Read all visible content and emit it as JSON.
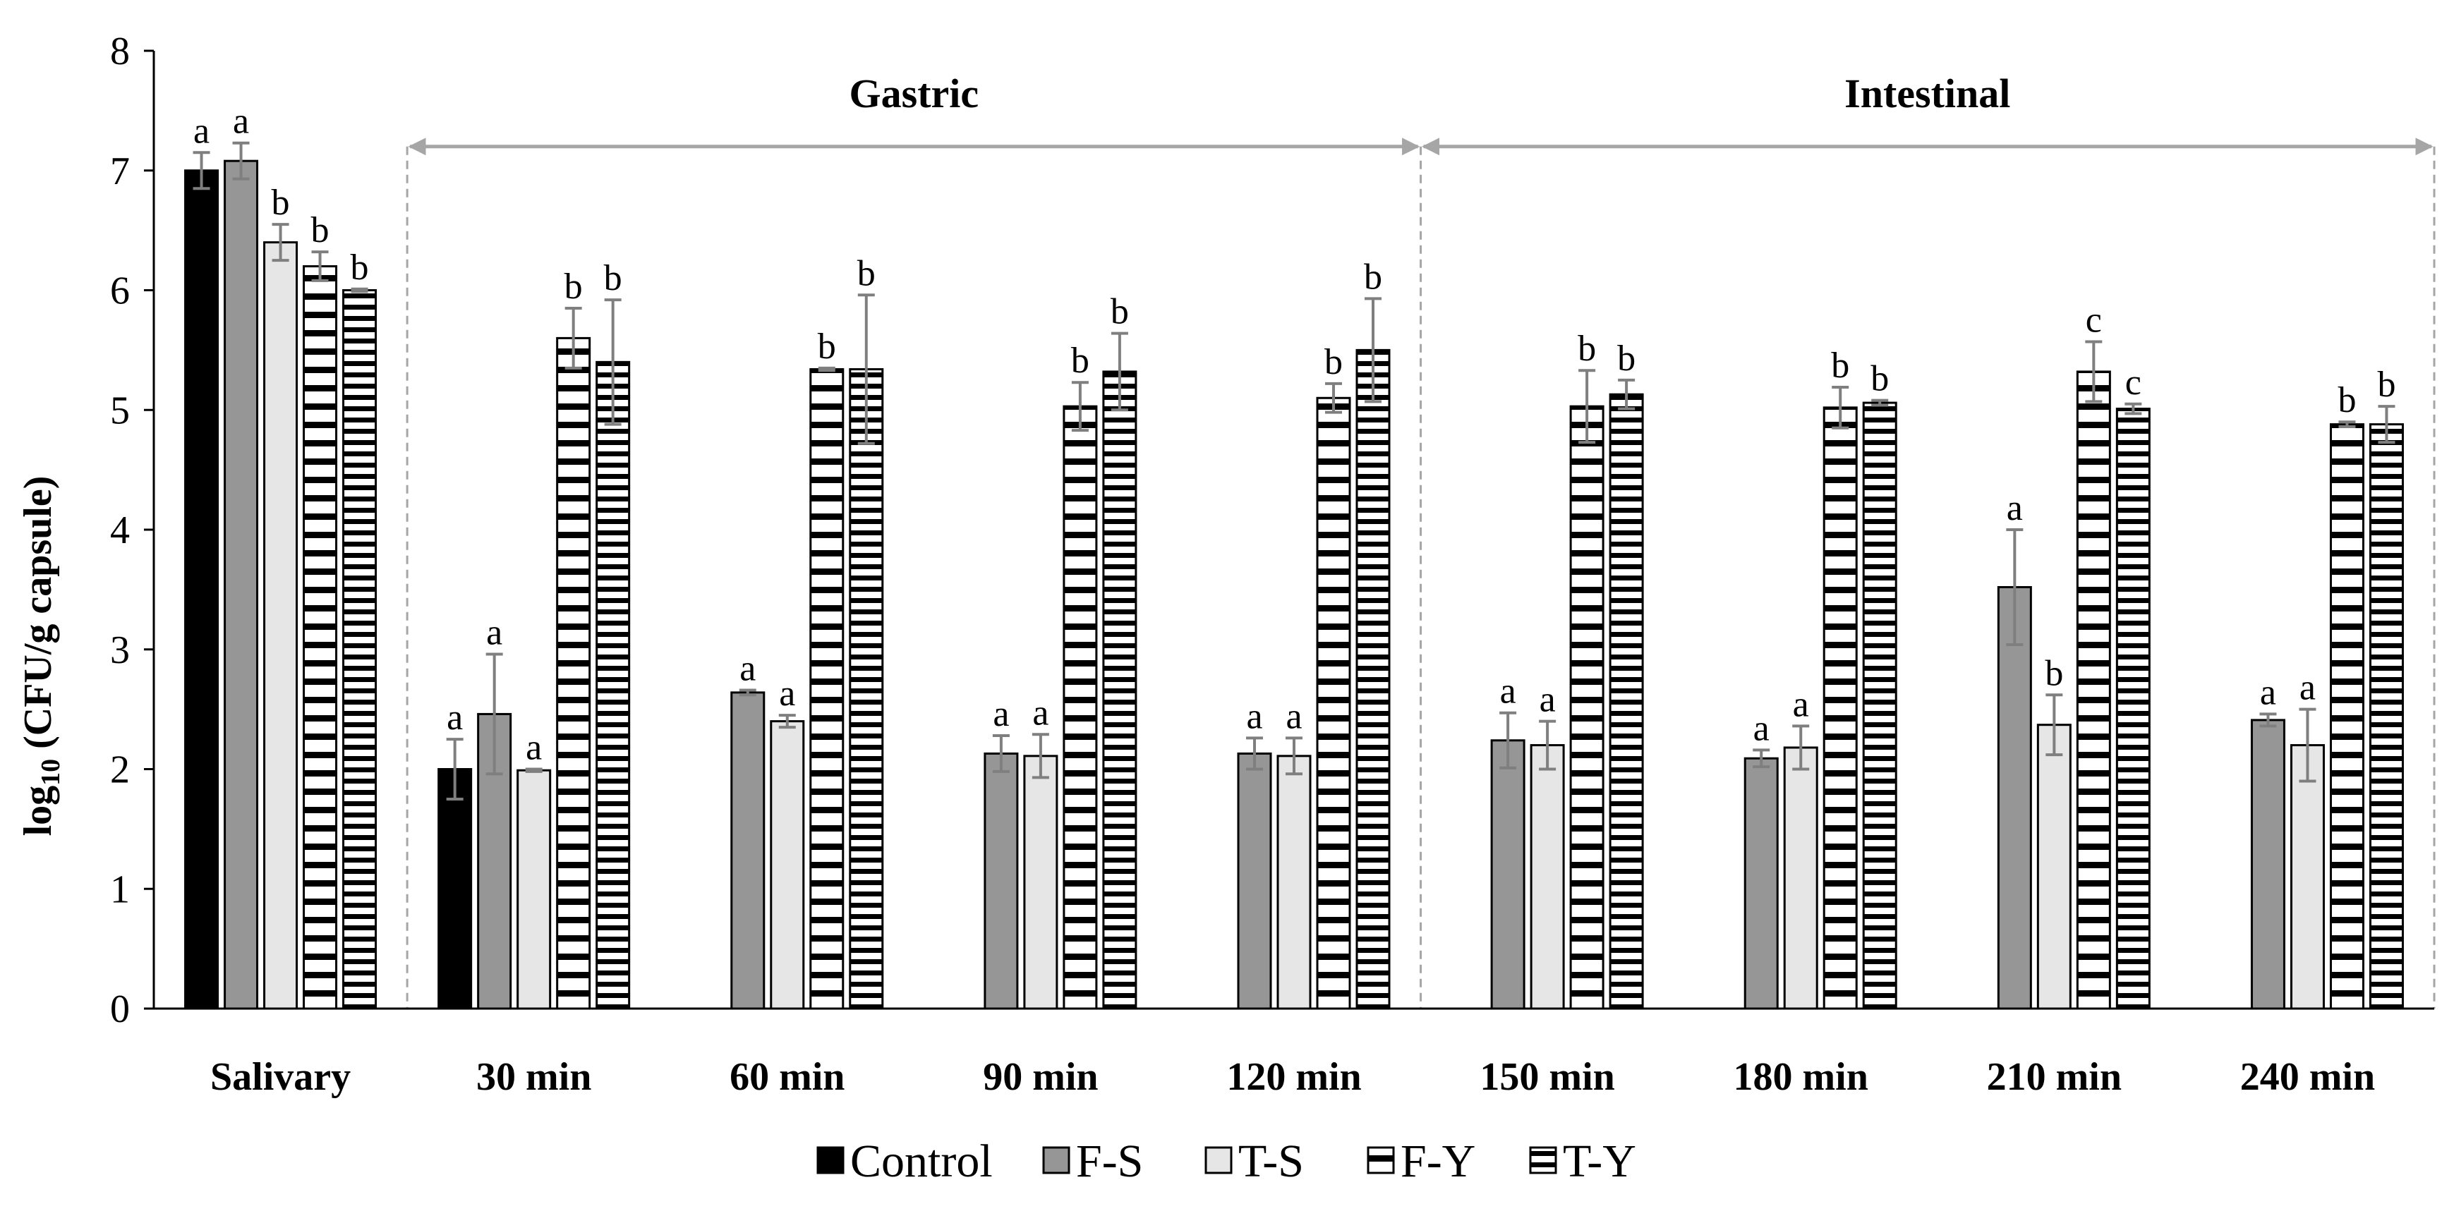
{
  "chart_data": {
    "type": "bar",
    "title": "",
    "xlabel": "",
    "ylabel": {
      "prefix": "log",
      "sub": "10",
      "suffix": " (CFU/g capsule)"
    },
    "ylim": [
      0,
      8
    ],
    "yticks": [
      "0",
      "1",
      "2",
      "3",
      "4",
      "5",
      "6",
      "7",
      "8"
    ],
    "categories": [
      "Salivary",
      "30 min",
      "60 min",
      "90 min",
      "120 min",
      "150 min",
      "180 min",
      "210 min",
      "240 min"
    ],
    "phases": [
      {
        "label": "Gastric",
        "from_category": 1,
        "to_category": 4
      },
      {
        "label": "Intestinal",
        "from_category": 5,
        "to_category": 8
      }
    ],
    "series": [
      {
        "name": "Control",
        "fill": "#000000",
        "pattern": "solid",
        "values": [
          7.0,
          2.0,
          null,
          null,
          null,
          null,
          null,
          null,
          null
        ],
        "errors": [
          0.15,
          0.25,
          null,
          null,
          null,
          null,
          null,
          null,
          null
        ],
        "labels": [
          "a",
          "a",
          null,
          null,
          null,
          null,
          null,
          null,
          null
        ]
      },
      {
        "name": "F-S",
        "fill": "#969696",
        "pattern": "solid",
        "values": [
          7.08,
          2.46,
          2.64,
          2.13,
          2.13,
          2.24,
          2.09,
          3.52,
          2.41
        ],
        "errors": [
          0.15,
          0.5,
          0.02,
          0.15,
          0.13,
          0.23,
          0.07,
          0.48,
          0.05
        ],
        "labels": [
          "a",
          "a",
          "a",
          "a",
          "a",
          "a",
          "a",
          "a",
          "a"
        ]
      },
      {
        "name": "T-S",
        "fill": "#e6e6e6",
        "pattern": "solid",
        "values": [
          6.4,
          1.99,
          2.4,
          2.11,
          2.11,
          2.2,
          2.18,
          2.37,
          2.2
        ],
        "errors": [
          0.15,
          0.01,
          0.05,
          0.18,
          0.15,
          0.2,
          0.18,
          0.25,
          0.3
        ],
        "labels": [
          "b",
          "a",
          "a",
          "a",
          "a",
          "a",
          "a",
          "b",
          "a"
        ]
      },
      {
        "name": "F-Y",
        "fill": "#ffffff",
        "pattern": "hstripe-wide",
        "values": [
          6.2,
          5.6,
          5.34,
          5.03,
          5.1,
          5.03,
          5.02,
          5.32,
          4.88
        ],
        "errors": [
          0.12,
          0.25,
          0.01,
          0.2,
          0.12,
          0.3,
          0.17,
          0.25,
          0.02
        ],
        "labels": [
          "b",
          "b",
          "b",
          "b",
          "b",
          "b",
          "b",
          "c",
          "b"
        ]
      },
      {
        "name": "T-Y",
        "fill": "#ffffff",
        "pattern": "hstripe-dense",
        "values": [
          6.0,
          5.4,
          5.34,
          5.32,
          5.5,
          5.13,
          5.06,
          5.01,
          4.88
        ],
        "errors": [
          0.01,
          0.52,
          0.62,
          0.32,
          0.43,
          0.12,
          0.02,
          0.04,
          0.15
        ],
        "labels": [
          "b",
          "b",
          "b",
          "b",
          "b",
          "b",
          "b",
          "c",
          "b"
        ]
      }
    ],
    "legend_position": "bottom-center",
    "grid": false
  }
}
